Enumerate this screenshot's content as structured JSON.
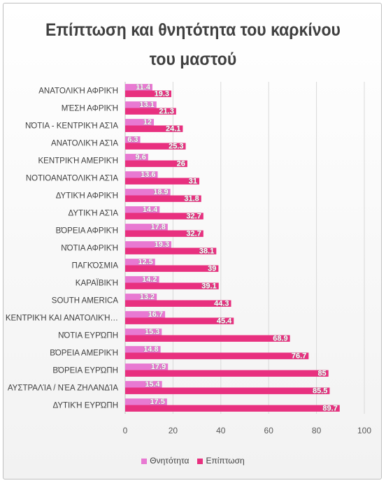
{
  "chart_data": {
    "type": "bar",
    "orientation": "horizontal",
    "title": "Επίπτωση και θνητότητα του καρκίνου του μαστού",
    "categories": [
      "ΑΝΑΤΟΛΙΚΉ ΑΦΡΙΚΉ",
      "ΜΈΣΗ ΑΦΡΙΚΉ",
      "ΝΌΤΙΑ - ΚΕΝΤΡΙΚΉ ΑΣΊΑ",
      "ΑΝΑΤΟΛΙΚΉ ΑΣΊΑ",
      "ΚΕΝΤΡΙΚΉ ΑΜΕΡΙΚΉ",
      "ΝΟΤΙΟΑΝΑΤΟΛΙΚΉ ΑΣΊΑ",
      "ΔΥΤΙΚΉ ΑΦΡΙΚΉ",
      "ΔΥΤΙΚΉ ΑΣΊΑ",
      "ΒΌΡΕΙΑ ΑΦΡΙΚΉ",
      "ΝΌΤΙΑ ΑΦΡΙΚΉ",
      "ΠΑΓΚΌΣΜΙΑ",
      "ΚΑΡΑΪΒΙΚΉ",
      "SOUTH AMERICA",
      "ΚΕΝΤΡΙΚΉ ΚΑΙ ΑΝΑΤΟΛΙΚΉ…",
      "ΝΌΤΙΑ ΕΥΡΏΠΗ",
      "ΒΌΡΕΙΑ ΑΜΕΡΙΚΉ",
      "ΒΌΡΕΙΑ ΕΥΡΏΠΗ",
      "ΑΥΣΤΡΑΛΊΑ / ΝΈΑ ΖΗΛΑΝΔΊΑ",
      "ΔΥΤΙΚΉ ΕΥΡΏΠΗ"
    ],
    "series": [
      {
        "name": "Θνητότητα",
        "color": "#e879d2",
        "values": [
          11.4,
          13.1,
          12,
          6.3,
          9.6,
          13.6,
          18.9,
          14.4,
          17.8,
          19.3,
          12.5,
          14.2,
          13.2,
          16.7,
          15.3,
          14.8,
          17.9,
          15.4,
          17.5
        ]
      },
      {
        "name": "Επίπτωση",
        "color": "#e8307f",
        "values": [
          19.3,
          21.3,
          24.1,
          25.3,
          26,
          31,
          31.8,
          32.7,
          32.7,
          38.1,
          39,
          39.1,
          44.3,
          45.4,
          68.9,
          76.7,
          85,
          85.5,
          89.7
        ]
      }
    ],
    "xlim": [
      0,
      100
    ],
    "xticks": [
      "0",
      "20",
      "40",
      "60",
      "80",
      "100"
    ],
    "grid": true,
    "legend": "bottom"
  }
}
